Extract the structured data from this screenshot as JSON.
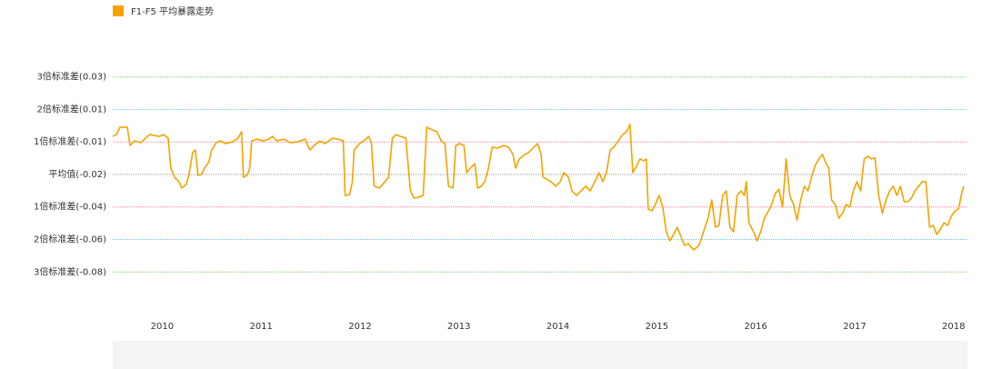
{
  "chart_data": {
    "type": "line",
    "xlim": [
      2009.5,
      2018.14
    ],
    "xticks": [
      2010,
      2011,
      2012,
      2013,
      2014,
      2015,
      2016,
      2017,
      2018
    ],
    "ylim": [
      -0.098,
      0.053
    ],
    "yticks": [
      {
        "value": 0.0305,
        "label": "3倍标准差(0.03)"
      },
      {
        "value": 0.0125,
        "label": "2倍标准差(0.01)"
      },
      {
        "value": -0.0055,
        "label": "1倍标准差(-0.01)"
      },
      {
        "value": -0.0235,
        "label": "平均值(-0.02)"
      },
      {
        "value": -0.0415,
        "label": "1倍标准差(-0.04)"
      },
      {
        "value": -0.0595,
        "label": "2倍标准差(-0.06)"
      },
      {
        "value": -0.0775,
        "label": "3倍标准差(-0.08)"
      }
    ],
    "grid": true,
    "grid_colors": [
      "#7cc96b",
      "#6cc3e8",
      "#f07f9a",
      "#999999",
      "#f07f9a",
      "#6cc3e8",
      "#7cc96b"
    ],
    "legend": "top-left",
    "series": [
      {
        "name": "F1-F5 平均暴露走势",
        "color": "#f5a300",
        "x": [
          2009.5,
          2009.537,
          2009.573,
          2009.647,
          2009.674,
          2009.72,
          2009.784,
          2009.83,
          2009.876,
          2009.968,
          2010.014,
          2010.06,
          2010.087,
          2010.124,
          2010.17,
          2010.197,
          2010.243,
          2010.271,
          2010.307,
          2010.335,
          2010.362,
          2010.399,
          2010.427,
          2010.472,
          2010.5,
          2010.546,
          2010.592,
          2010.638,
          2010.711,
          2010.766,
          2010.803,
          2010.821,
          2010.858,
          2010.885,
          2010.904,
          2010.959,
          2011.023,
          2011.078,
          2011.115,
          2011.161,
          2011.225,
          2011.298,
          2011.372,
          2011.445,
          2011.491,
          2011.537,
          2011.592,
          2011.647,
          2011.72,
          2011.775,
          2011.83,
          2011.849,
          2011.894,
          2011.922,
          2011.94,
          2011.995,
          2012.06,
          2012.087,
          2012.115,
          2012.142,
          2012.197,
          2012.252,
          2012.289,
          2012.326,
          2012.362,
          2012.408,
          2012.463,
          2012.509,
          2012.546,
          2012.592,
          2012.638,
          2012.674,
          2012.729,
          2012.775,
          2012.821,
          2012.858,
          2012.894,
          2012.94,
          2012.968,
          2013.005,
          2013.05,
          2013.078,
          2013.115,
          2013.161,
          2013.188,
          2013.225,
          2013.261,
          2013.298,
          2013.335,
          2013.39,
          2013.454,
          2013.5,
          2013.546,
          2013.573,
          2013.61,
          2013.665,
          2013.702,
          2013.748,
          2013.794,
          2013.83,
          2013.849,
          2013.885,
          2013.931,
          2013.977,
          2014.023,
          2014.06,
          2014.106,
          2014.142,
          2014.188,
          2014.234,
          2014.28,
          2014.326,
          2014.372,
          2014.417,
          2014.454,
          2014.491,
          2014.528,
          2014.564,
          2014.61,
          2014.656,
          2014.693,
          2014.729,
          2014.757,
          2014.794,
          2014.83,
          2014.867,
          2014.894,
          2014.913,
          2014.95,
          2014.986,
          2015.023,
          2015.06,
          2015.096,
          2015.133,
          2015.17,
          2015.206,
          2015.243,
          2015.28,
          2015.317,
          2015.372,
          2015.427,
          2015.472,
          2015.518,
          2015.555,
          2015.592,
          2015.628,
          2015.665,
          2015.702,
          2015.739,
          2015.775,
          2015.812,
          2015.849,
          2015.885,
          2015.904,
          2015.931,
          2015.977,
          2016.014,
          2016.05,
          2016.087,
          2016.124,
          2016.161,
          2016.197,
          2016.234,
          2016.271,
          2016.307,
          2016.344,
          2016.381,
          2016.417,
          2016.454,
          2016.491,
          2016.528,
          2016.564,
          2016.601,
          2016.638,
          2016.674,
          2016.711,
          2016.739,
          2016.766,
          2016.803,
          2016.839,
          2016.876,
          2016.913,
          2016.95,
          2016.986,
          2017.023,
          2017.06,
          2017.096,
          2017.133,
          2017.17,
          2017.206,
          2017.243,
          2017.28,
          2017.317,
          2017.353,
          2017.39,
          2017.427,
          2017.463,
          2017.5,
          2017.537,
          2017.573,
          2017.61,
          2017.647,
          2017.683,
          2017.72,
          2017.757,
          2017.794,
          2017.83,
          2017.867,
          2017.904,
          2017.94,
          2017.977,
          2018.014,
          2018.05,
          2018.087,
          2018.105
        ],
        "values": [
          -0.0024,
          -0.0014,
          0.0027,
          0.0027,
          -0.0074,
          -0.0049,
          -0.0059,
          -0.0034,
          -0.0014,
          -0.0024,
          -0.0014,
          -0.0034,
          -0.02,
          -0.025,
          -0.0275,
          -0.031,
          -0.029,
          -0.0235,
          -0.0114,
          -0.0099,
          -0.024,
          -0.0235,
          -0.02,
          -0.0165,
          -0.0099,
          -0.0059,
          -0.0049,
          -0.0064,
          -0.0054,
          -0.0034,
          0.0002,
          -0.025,
          -0.024,
          -0.02,
          -0.0049,
          -0.0039,
          -0.0049,
          -0.0039,
          -0.0024,
          -0.0049,
          -0.0039,
          -0.0059,
          -0.0054,
          -0.0039,
          -0.0099,
          -0.0074,
          -0.0049,
          -0.0064,
          -0.0034,
          -0.0039,
          -0.0049,
          -0.0351,
          -0.0346,
          -0.0275,
          -0.0099,
          -0.0064,
          -0.0039,
          -0.0024,
          -0.0059,
          -0.03,
          -0.031,
          -0.0275,
          -0.025,
          -0.0034,
          -0.0014,
          -0.0024,
          -0.0034,
          -0.0326,
          -0.0366,
          -0.0361,
          -0.0351,
          0.0027,
          0.0012,
          0.0002,
          -0.0049,
          -0.0064,
          -0.03,
          -0.031,
          -0.0074,
          -0.0064,
          -0.0074,
          -0.0225,
          -0.02,
          -0.0175,
          -0.031,
          -0.03,
          -0.0275,
          -0.02,
          -0.0084,
          -0.0089,
          -0.0074,
          -0.0084,
          -0.0124,
          -0.02,
          -0.0149,
          -0.0124,
          -0.0114,
          -0.0089,
          -0.0064,
          -0.0124,
          -0.025,
          -0.026,
          -0.0275,
          -0.03,
          -0.0275,
          -0.0225,
          -0.025,
          -0.0326,
          -0.0351,
          -0.0326,
          -0.03,
          -0.0326,
          -0.0275,
          -0.0225,
          -0.0275,
          -0.0225,
          -0.0099,
          -0.0084,
          -0.0049,
          -0.0014,
          0.0002,
          0.0042,
          -0.0225,
          -0.019,
          -0.0149,
          -0.0159,
          -0.0149,
          -0.0426,
          -0.0436,
          -0.0401,
          -0.0351,
          -0.0416,
          -0.0552,
          -0.0602,
          -0.0567,
          -0.0527,
          -0.0577,
          -0.0628,
          -0.0618,
          -0.0653,
          -0.0628,
          -0.0552,
          -0.0477,
          -0.0376,
          -0.0527,
          -0.0517,
          -0.0351,
          -0.0326,
          -0.0527,
          -0.0552,
          -0.0351,
          -0.0326,
          -0.0351,
          -0.0275,
          -0.0502,
          -0.0552,
          -0.0602,
          -0.0552,
          -0.0477,
          -0.0441,
          -0.0401,
          -0.0341,
          -0.0316,
          -0.0416,
          -0.0149,
          -0.0351,
          -0.0401,
          -0.0487,
          -0.0376,
          -0.03,
          -0.0326,
          -0.025,
          -0.0185,
          -0.0149,
          -0.0124,
          -0.0175,
          -0.02,
          -0.0376,
          -0.0401,
          -0.0477,
          -0.0451,
          -0.0401,
          -0.0416,
          -0.0326,
          -0.0275,
          -0.0326,
          -0.0149,
          -0.0134,
          -0.0149,
          -0.0144,
          -0.0351,
          -0.0451,
          -0.0376,
          -0.0326,
          -0.03,
          -0.0351,
          -0.03,
          -0.0386,
          -0.0386,
          -0.0366,
          -0.0326,
          -0.03,
          -0.0275,
          -0.0275,
          -0.0527,
          -0.0517,
          -0.0567,
          -0.0537,
          -0.0502,
          -0.0517,
          -0.0466,
          -0.0436,
          -0.0426,
          -0.0326,
          -0.03
        ]
      }
    ]
  }
}
